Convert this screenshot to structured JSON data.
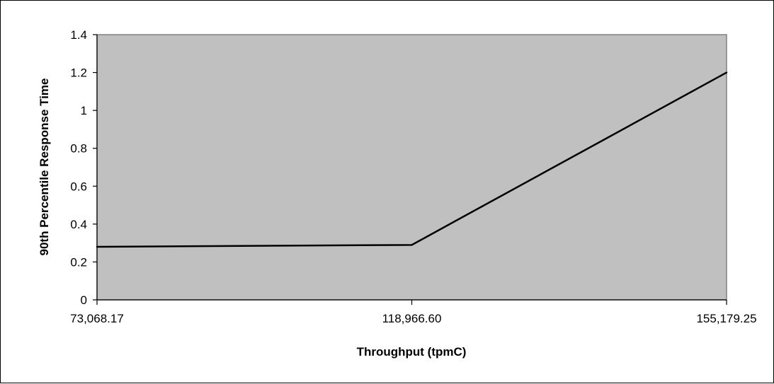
{
  "chart_data": {
    "type": "line",
    "title": "",
    "xlabel": "Throughput (tpmC)",
    "ylabel": "90th Percentile Response Time",
    "categories": [
      "73,068.17",
      "118,966.60",
      "155,179.25"
    ],
    "series": [
      {
        "values": [
          0.28,
          0.29,
          1.2
        ]
      }
    ],
    "ylim": [
      0,
      1.4
    ],
    "yticks": [
      "0",
      "0.2",
      "0.4",
      "0.6",
      "0.8",
      "1",
      "1.2",
      "1.4"
    ],
    "grid": false,
    "legend": "none",
    "colors": {
      "plot_area": "#c0c0c0",
      "line": "#000000",
      "plot_border": "#808080"
    }
  }
}
